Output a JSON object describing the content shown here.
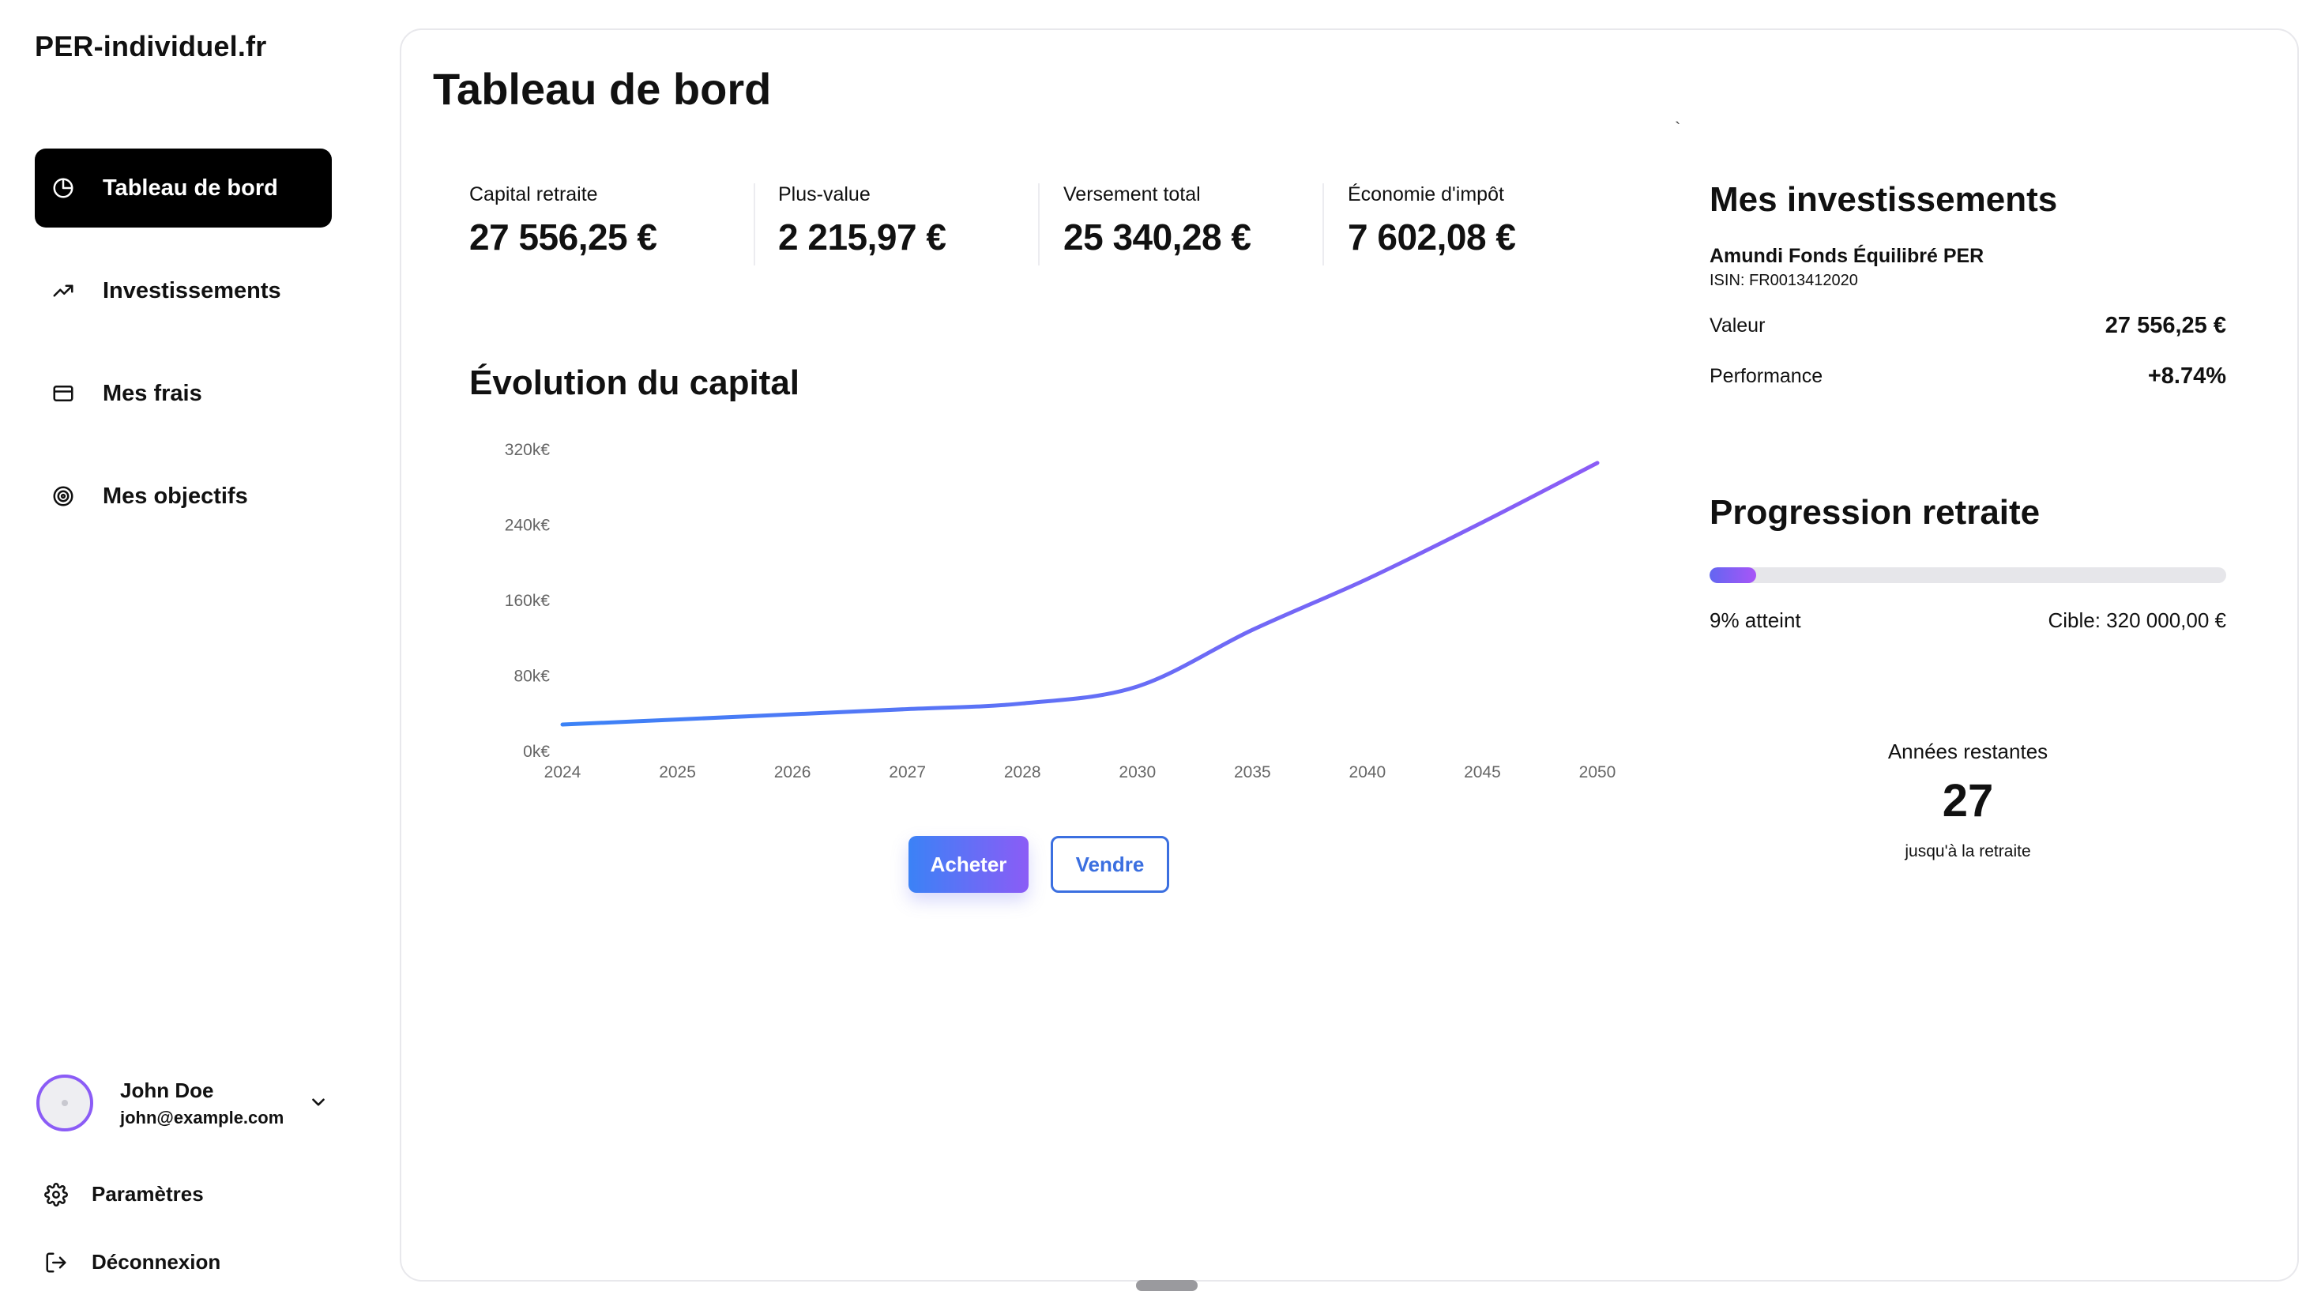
{
  "app": {
    "brand": "PER-individuel.fr"
  },
  "sidebar": {
    "items": [
      {
        "label": "Tableau de bord",
        "icon": "pie-chart-icon",
        "active": true
      },
      {
        "label": "Investissements",
        "icon": "trending-up-icon",
        "active": false
      },
      {
        "label": "Mes frais",
        "icon": "credit-card-icon",
        "active": false
      },
      {
        "label": "Mes objectifs",
        "icon": "target-icon",
        "active": false
      }
    ],
    "user": {
      "name": "John Doe",
      "email": "john@example.com"
    },
    "footer": {
      "settings": "Paramètres",
      "logout": "Déconnexion"
    }
  },
  "main": {
    "title": "Tableau de bord",
    "stats": [
      {
        "label": "Capital retraite",
        "value": "27 556,25 €"
      },
      {
        "label": "Plus-value",
        "value": "2 215,97 €"
      },
      {
        "label": "Versement total",
        "value": "25 340,28 €"
      },
      {
        "label": "Économie d'impôt",
        "value": "7 602,08 €"
      }
    ],
    "chart_title": "Évolution du capital",
    "actions": {
      "buy": "Acheter",
      "sell": "Vendre"
    }
  },
  "investments": {
    "title": "Mes investissements",
    "fund_name": "Amundi Fonds Équilibré PER",
    "isin": "ISIN: FR0013412020",
    "value_label": "Valeur",
    "value": "27 556,25 €",
    "performance_label": "Performance",
    "performance": "+8.74%"
  },
  "progression": {
    "title": "Progression retraite",
    "progress_fraction": 0.09,
    "reached_text": "9% atteint",
    "target_text": "Cible: 320 000,00 €",
    "years_label": "Années restantes",
    "years_value": "27",
    "years_sub": "jusqu'à la retraite"
  },
  "colors": {
    "accent_start": "#3b82f6",
    "accent_end": "#8b5cf6",
    "sell_border": "#3b6fe0"
  },
  "chart_data": {
    "type": "line",
    "title": "Évolution du capital",
    "categories": [
      "2024",
      "2025",
      "2026",
      "2027",
      "2028",
      "2030",
      "2035",
      "2040",
      "2045",
      "2050"
    ],
    "values": [
      27.6,
      33,
      38.5,
      44,
      50,
      68,
      128,
      182,
      242,
      305
    ],
    "y_unit": "k€",
    "yticks": [
      "0k€",
      "80k€",
      "160k€",
      "240k€",
      "320k€"
    ],
    "ylim": [
      0,
      320
    ],
    "grid": false,
    "line_gradient": [
      "#3b82f6",
      "#8b5cf6"
    ]
  }
}
